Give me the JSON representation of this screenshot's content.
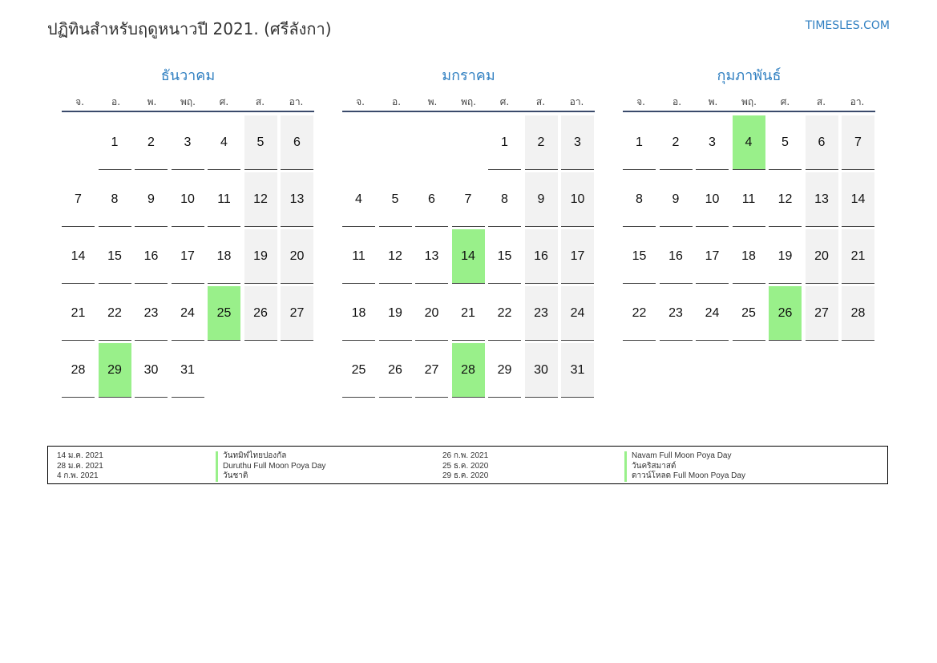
{
  "header": {
    "title": "ปฏิทินสำหรับฤดูหนาวปี 2021. (ศรีลังกา)",
    "site": "TIMESLES.COM"
  },
  "dow": [
    "จ.",
    "อ.",
    "พ.",
    "พฤ.",
    "ศ.",
    "ส.",
    "อา."
  ],
  "months": [
    {
      "name": "ธันวาคม",
      "offset": 1,
      "days": 31,
      "holidays": [
        25,
        29
      ]
    },
    {
      "name": "มกราคม",
      "offset": 4,
      "days": 31,
      "holidays": [
        14,
        28
      ]
    },
    {
      "name": "กุมภาพันธ์",
      "offset": 0,
      "days": 28,
      "holidays": [
        4,
        26
      ]
    }
  ],
  "holidays_legend": [
    {
      "date": "14 ม.ค. 2021",
      "name": "วันทมิฬไทยปองกัล"
    },
    {
      "date": "28 ม.ค. 2021",
      "name": "Duruthu Full Moon Poya Day"
    },
    {
      "date": "4 ก.พ. 2021",
      "name": "วันชาติ"
    },
    {
      "date": "26 ก.พ. 2021",
      "name": "Navam Full Moon Poya Day"
    },
    {
      "date": "25 ธ.ค. 2020",
      "name": "วันคริสมาสต์"
    },
    {
      "date": "29 ธ.ค. 2020",
      "name": "ดาวน์โหลด Full Moon Poya Day"
    }
  ],
  "colors": {
    "accent": "#2f7fc1",
    "holiday": "#99f08a",
    "weekend": "#f2f2f2"
  }
}
